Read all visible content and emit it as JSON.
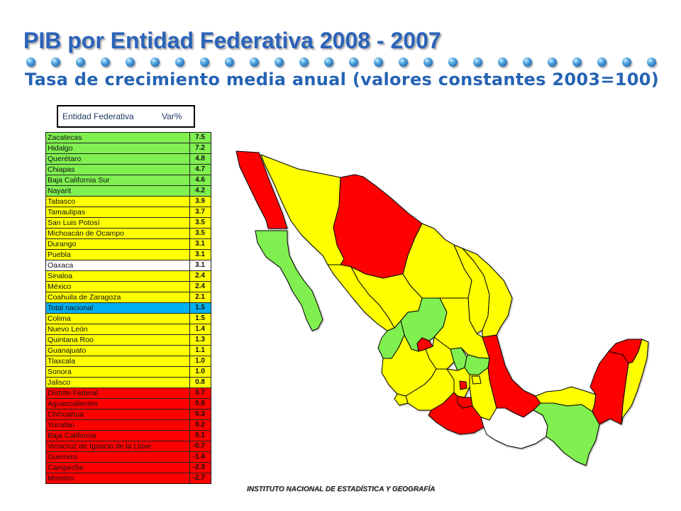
{
  "slide": {
    "title": "PIB por Entidad Federativa 2008 - 2007",
    "subtitle": "Tasa de crecimiento media anual (valores constantes 2003=100)",
    "footer": "INSTITUTO NACIONAL DE ESTADÍSTICA Y GEOGRAFÍA"
  },
  "theme": {
    "title_color": "#2a63b9",
    "subtitle_color": "#2563b3"
  },
  "table": {
    "header": {
      "entity_label": "Entidad Federativa",
      "value_label": "Var%"
    },
    "rows": [
      {
        "name": "Zacatecas",
        "value": "7.5",
        "fill": "#80f050"
      },
      {
        "name": "Hidalgo",
        "value": "7.2",
        "fill": "#80f050"
      },
      {
        "name": "Querétaro",
        "value": "4.8",
        "fill": "#80f050"
      },
      {
        "name": "Chiapas",
        "value": "4.7",
        "fill": "#80f050"
      },
      {
        "name": "Baja California Sur",
        "value": "4.6",
        "fill": "#80f050"
      },
      {
        "name": "Nayarit",
        "value": "4.2",
        "fill": "#80f050"
      },
      {
        "name": "Tabasco",
        "value": "3.9",
        "fill": "#ffff00"
      },
      {
        "name": "Tamaulipas",
        "value": "3.7",
        "fill": "#ffff00"
      },
      {
        "name": "San Luis Potosí",
        "value": "3.5",
        "fill": "#ffff00"
      },
      {
        "name": "Michoacán de Ocampo",
        "value": "3.5",
        "fill": "#ffff00"
      },
      {
        "name": "Durango",
        "value": "3.1",
        "fill": "#ffff00"
      },
      {
        "name": "Puebla",
        "value": "3.1",
        "fill": "#ffff00"
      },
      {
        "name": "Oaxaca",
        "value": "3.1",
        "fill": "#ffffff"
      },
      {
        "name": "Sinaloa",
        "value": "2.4",
        "fill": "#ffff00"
      },
      {
        "name": "México",
        "value": "2.4",
        "fill": "#ffff00"
      },
      {
        "name": "Coahuila de Zaragoza",
        "value": "2.1",
        "fill": "#ffff00"
      },
      {
        "name": "Total nacional",
        "value": "1.5",
        "fill": "#00b0f0"
      },
      {
        "name": "Colima",
        "value": "1.5",
        "fill": "#ffff00"
      },
      {
        "name": "Nuevo León",
        "value": "1.4",
        "fill": "#ffff00"
      },
      {
        "name": "Quintana Roo",
        "value": "1.3",
        "fill": "#ffff00"
      },
      {
        "name": "Guanajuato",
        "value": "1.1",
        "fill": "#ffff00"
      },
      {
        "name": "Tlaxcala",
        "value": "1.0",
        "fill": "#ffff00"
      },
      {
        "name": "Sonora",
        "value": "1.0",
        "fill": "#ffff00"
      },
      {
        "name": "Jalisco",
        "value": "0.8",
        "fill": "#ffff00"
      },
      {
        "name": "Distrito Federal",
        "value": "0.7",
        "fill": "#ff0000"
      },
      {
        "name": "Aguascalientes",
        "value": "0.6",
        "fill": "#ff0000"
      },
      {
        "name": "Chihuahua",
        "value": "0.3",
        "fill": "#ff0000"
      },
      {
        "name": "Yucatán",
        "value": "0.2",
        "fill": "#ff0000"
      },
      {
        "name": "Baja California",
        "value": "0.1",
        "fill": "#ff0000"
      },
      {
        "name": "Veracruz de Ignacio de la Llave",
        "value": "-0.7",
        "fill": "#ff0000"
      },
      {
        "name": "Guerrero",
        "value": "-1.4",
        "fill": "#ff0000"
      },
      {
        "name": "Campeche",
        "value": "-2.3",
        "fill": "#ff0000"
      },
      {
        "name": "Morelos",
        "value": "-2.7",
        "fill": "#ff0000"
      }
    ]
  }
}
